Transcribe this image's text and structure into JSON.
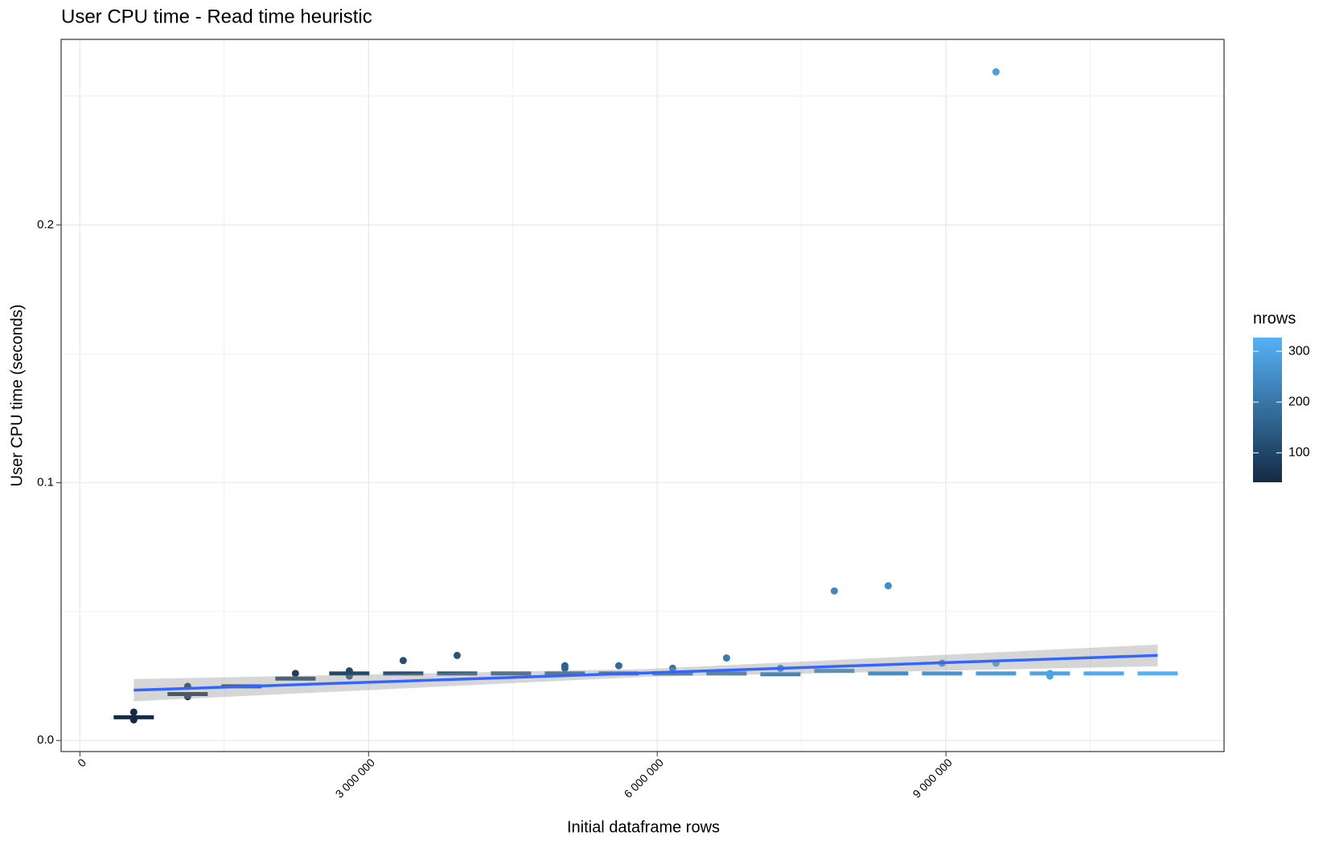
{
  "chart_data": {
    "type": "box",
    "title": "User CPU time - Read time heuristic",
    "x_label": "Initial dataframe rows",
    "y_label": "User CPU time (seconds)",
    "xlim": [
      -195000,
      11890000
    ],
    "ylim": [
      -0.0043,
      0.272
    ],
    "xticks": [
      0,
      {
        "value": 3000000,
        "label": "3 000 000"
      },
      {
        "value": 6000000,
        "label": "6 000 000"
      },
      {
        "value": 9000000,
        "label": "9 000 000"
      }
    ],
    "yticks": [
      {
        "value": 0,
        "label": "0.0"
      },
      0.1,
      0.2
    ],
    "x_minor_grid": [
      1500000,
      4500000,
      7500000,
      10500000
    ],
    "y_minor_grid": [
      0.05,
      0.15,
      0.25
    ],
    "grid": true,
    "boxes": {
      "x": [
        560000,
        1120000,
        1680000,
        2240000,
        2800000,
        3360000,
        3920000,
        4480000,
        5040000,
        5600000,
        6160000,
        6720000,
        7280000,
        7840000,
        8400000,
        8960000,
        9520000,
        10080000,
        10640000,
        11200000
      ],
      "median": [
        0.009,
        0.018,
        0.021,
        0.024,
        0.026,
        0.026,
        0.026,
        0.026,
        0.026,
        0.026,
        0.026,
        0.026,
        0.0257,
        0.027,
        0.026,
        0.026,
        0.026,
        0.026,
        0.026,
        0.026
      ],
      "nrows": [
        42,
        57,
        72,
        87,
        102,
        117,
        132,
        147,
        162,
        177,
        192,
        207,
        222,
        237,
        252,
        267,
        282,
        297,
        312,
        327
      ]
    },
    "points": {
      "x": [
        560000,
        560000,
        1120000,
        1120000,
        2240000,
        2800000,
        2800000,
        3360000,
        3920000,
        5040000,
        5040000,
        5600000,
        6160000,
        6720000,
        7280000,
        7840000,
        8400000,
        8960000,
        9520000,
        9520000,
        10080000,
        10080000
      ],
      "y": [
        0.011,
        0.008,
        0.021,
        0.017,
        0.026,
        0.027,
        0.025,
        0.031,
        0.033,
        0.029,
        0.028,
        0.029,
        0.028,
        0.032,
        0.028,
        0.058,
        0.06,
        0.03,
        0.2594,
        0.03,
        0.026,
        0.025
      ],
      "nrows": [
        42,
        42,
        57,
        57,
        87,
        102,
        102,
        117,
        132,
        162,
        162,
        177,
        192,
        207,
        222,
        237,
        252,
        267,
        282,
        282,
        297,
        297
      ]
    },
    "fit": {
      "color": "#3366ff",
      "x": [
        560000,
        5880000,
        11200000
      ],
      "y": [
        0.0195,
        0.0262,
        0.033
      ],
      "lower": [
        0.0152,
        0.0247,
        0.0288
      ],
      "upper": [
        0.0238,
        0.0277,
        0.0372
      ]
    },
    "legend": {
      "title": "nrows",
      "limits": [
        42,
        327
      ],
      "ticks": [
        100,
        200,
        300
      ],
      "low_color": "#132B43",
      "high_color": "#56B1F7",
      "position": "right"
    }
  }
}
